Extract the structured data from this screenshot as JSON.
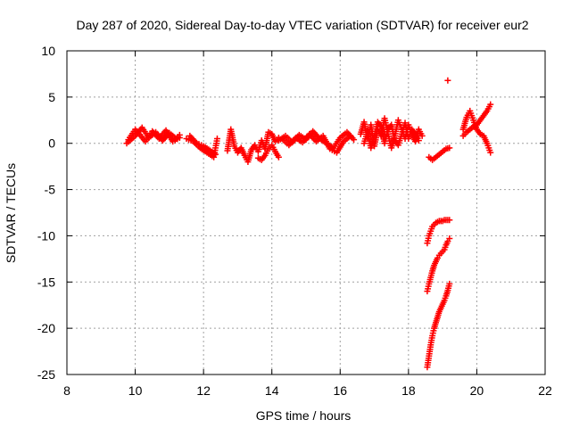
{
  "chart_data": {
    "type": "scatter",
    "title": "Day 287 of 2020, Sidereal Day-to-day VTEC variation (SDTVAR) for receiver eur2",
    "xlabel": "GPS time / hours",
    "ylabel": "SDTVAR / TECUs",
    "xlim": [
      8,
      22
    ],
    "ylim": [
      -25,
      10
    ],
    "xticks": [
      "8",
      "10",
      "12",
      "14",
      "16",
      "18",
      "20",
      "22"
    ],
    "yticks": [
      "10",
      "5",
      "0",
      "-5",
      "-10",
      "-15",
      "-20",
      "-25"
    ],
    "grid": true,
    "marker": "plus",
    "color": "#ff0000",
    "segments": [
      {
        "x": [
          9.75,
          10.0,
          10.2,
          10.4,
          10.6,
          10.8,
          11.0,
          11.2,
          11.3
        ],
        "y": [
          0.0,
          0.8,
          1.7,
          0.6,
          1.2,
          0.3,
          1.1,
          0.5,
          0.9
        ]
      },
      {
        "x": [
          9.8,
          10.0,
          10.3,
          10.5,
          10.7,
          10.9,
          11.1,
          11.3
        ],
        "y": [
          0.4,
          1.5,
          0.2,
          1.3,
          0.5,
          1.4,
          0.2,
          0.6
        ]
      },
      {
        "x": [
          11.5,
          11.7,
          11.9,
          12.1,
          12.3,
          12.4
        ],
        "y": [
          0.5,
          0.2,
          -0.5,
          -1.0,
          -1.5,
          0.5
        ]
      },
      {
        "x": [
          11.6,
          11.8,
          12.0,
          12.2,
          12.35
        ],
        "y": [
          0.8,
          0.0,
          -0.3,
          -0.8,
          -1.2
        ]
      },
      {
        "x": [
          12.7,
          12.8,
          12.9,
          13.0,
          13.1,
          13.2,
          13.3,
          13.4,
          13.5,
          13.6,
          13.7,
          13.8,
          13.9,
          14.0,
          14.1,
          14.2
        ],
        "y": [
          -0.8,
          1.5,
          -0.3,
          -1.0,
          -0.5,
          -1.3,
          -2.0,
          -0.7,
          -0.2,
          -0.9,
          0.3,
          -0.6,
          1.2,
          1.0,
          0.2,
          0.6
        ]
      },
      {
        "x": [
          13.6,
          13.7,
          13.8,
          13.9,
          14.0,
          14.1,
          14.2
        ],
        "y": [
          -1.6,
          -1.8,
          -1.3,
          -0.6,
          -0.2,
          -0.9,
          -1.5
        ]
      },
      {
        "x": [
          14.2,
          14.4,
          14.6,
          14.8,
          15.0,
          15.2,
          15.4,
          15.6,
          15.8,
          16.0,
          16.2,
          16.4
        ],
        "y": [
          0.3,
          0.8,
          0.1,
          0.9,
          0.4,
          1.3,
          0.5,
          0.0,
          -0.5,
          0.6,
          1.2,
          0.4
        ]
      },
      {
        "x": [
          14.3,
          14.5,
          14.7,
          14.9,
          15.1,
          15.3,
          15.5,
          15.7,
          15.9,
          16.1,
          16.3
        ],
        "y": [
          0.5,
          -0.2,
          0.6,
          0.1,
          1.0,
          0.2,
          0.8,
          -0.6,
          -1.0,
          0.2,
          0.8
        ]
      },
      {
        "x": [
          16.6,
          16.7,
          16.8,
          16.9,
          17.0,
          17.1,
          17.2,
          17.3,
          17.4,
          17.5,
          17.6,
          17.7,
          17.8,
          17.9,
          18.0,
          18.1,
          18.2,
          18.3,
          18.4
        ],
        "y": [
          1.0,
          2.3,
          0.5,
          2.0,
          -0.3,
          1.5,
          0.8,
          2.7,
          1.0,
          -0.5,
          0.8,
          2.5,
          1.5,
          0.5,
          2.0,
          1.0,
          0.2,
          1.5,
          0.8
        ]
      },
      {
        "x": [
          16.7,
          16.8,
          16.9,
          17.0,
          17.1,
          17.2,
          17.3,
          17.4,
          17.5,
          17.6,
          17.7,
          17.8,
          17.9,
          18.0,
          18.1,
          18.2,
          18.3
        ],
        "y": [
          0.0,
          1.2,
          -0.5,
          0.8,
          2.3,
          1.8,
          0.0,
          1.5,
          2.0,
          0.3,
          -0.2,
          1.0,
          2.2,
          0.5,
          1.5,
          1.0,
          0.3
        ]
      },
      {
        "x": [
          18.6,
          18.7,
          18.8,
          18.9,
          19.0,
          19.1,
          19.2
        ],
        "y": [
          -1.5,
          -1.8,
          -1.5,
          -1.2,
          -0.9,
          -0.6,
          -0.5
        ]
      },
      {
        "x": [
          19.15
        ],
        "y": [
          6.8
        ]
      },
      {
        "x": [
          19.6,
          19.7,
          19.8,
          19.9,
          20.0,
          20.1,
          20.2,
          20.3,
          20.4
        ],
        "y": [
          1.5,
          2.8,
          3.5,
          2.5,
          1.5,
          1.0,
          0.8,
          0.0,
          -1.0
        ]
      },
      {
        "x": [
          19.6,
          19.7,
          19.8,
          19.9,
          20.0,
          20.1,
          20.2,
          20.3,
          20.4
        ],
        "y": [
          0.8,
          1.2,
          1.5,
          1.8,
          2.0,
          2.5,
          3.0,
          3.5,
          4.2
        ]
      },
      {
        "x": [
          18.55,
          18.6,
          18.65,
          18.7,
          18.75,
          18.8,
          18.85,
          18.9,
          18.95,
          19.0,
          19.05,
          19.1,
          19.15,
          19.2
        ],
        "y": [
          -10.8,
          -10.0,
          -9.5,
          -9.0,
          -8.8,
          -8.6,
          -8.5,
          -8.4,
          -8.4,
          -8.4,
          -8.3,
          -8.3,
          -8.3,
          -8.3
        ]
      },
      {
        "x": [
          18.55,
          18.6,
          18.65,
          18.7,
          18.75,
          18.8,
          18.85,
          18.9,
          18.95,
          19.0,
          19.05,
          19.1,
          19.15,
          19.2
        ],
        "y": [
          -16.0,
          -15.2,
          -14.5,
          -13.8,
          -13.2,
          -12.8,
          -12.4,
          -12.1,
          -11.9,
          -11.7,
          -11.5,
          -11.0,
          -10.6,
          -10.3
        ]
      },
      {
        "x": [
          18.55,
          18.6,
          18.65,
          18.7,
          18.75,
          18.8,
          18.85,
          18.9,
          18.95,
          19.0,
          19.05,
          19.1,
          19.15,
          19.2
        ],
        "y": [
          -24.2,
          -23.0,
          -21.8,
          -20.8,
          -20.0,
          -19.4,
          -18.8,
          -18.2,
          -17.8,
          -17.4,
          -17.0,
          -16.5,
          -15.9,
          -15.2
        ]
      }
    ]
  }
}
